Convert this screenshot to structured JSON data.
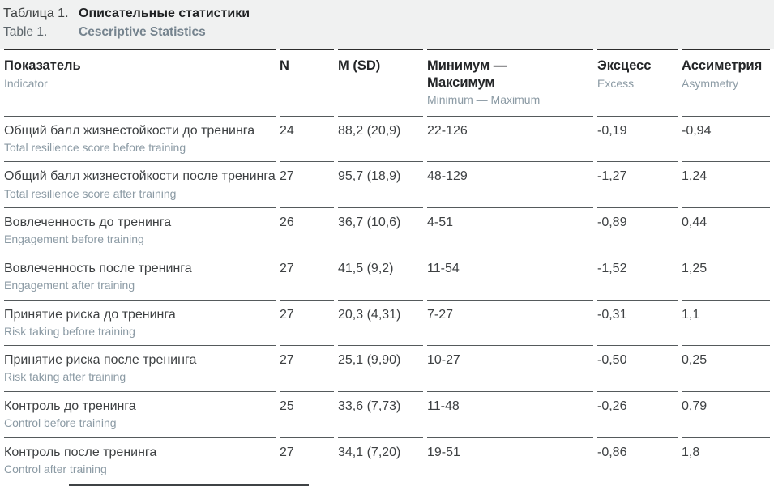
{
  "caption": {
    "ru_prefix": "Таблица 1.",
    "ru_title": "Описательные статистики",
    "en_prefix": "Table 1.",
    "en_title": "Cescriptive Statistics"
  },
  "table": {
    "columns": [
      {
        "ru": "Показатель",
        "en": "Indicator"
      },
      {
        "ru": "N",
        "en": ""
      },
      {
        "ru": "M (SD)",
        "en": ""
      },
      {
        "ru": "Минимум — Максимум",
        "en": "Minimum — Maximum"
      },
      {
        "ru": "Эксцесс",
        "en": "Excess"
      },
      {
        "ru": "Ассиметрия",
        "en": "Asymmetry"
      }
    ],
    "rows": [
      {
        "ru": "Общий балл жизнестойкости до тренинга",
        "en": "Total resilience score before training",
        "n": "24",
        "m_sd": "88,2 (20,9)",
        "min_max": "22-126",
        "excess": "-0,19",
        "asymmetry": "-0,94"
      },
      {
        "ru": "Общий балл жизнестойкости после тренинга",
        "en": "Total resilience score after training",
        "n": "27",
        "m_sd": "95,7 (18,9)",
        "min_max": "48-129",
        "excess": "-1,27",
        "asymmetry": "1,24"
      },
      {
        "ru": "Вовлеченность до тренинга",
        "en": "Engagement before training",
        "n": "26",
        "m_sd": "36,7 (10,6)",
        "min_max": "4-51",
        "excess": "-0,89",
        "asymmetry": "0,44"
      },
      {
        "ru": "Вовлеченность после тренинга",
        "en": "Engagement after training",
        "n": "27",
        "m_sd": "41,5 (9,2)",
        "min_max": "11-54",
        "excess": "-1,52",
        "asymmetry": "1,25"
      },
      {
        "ru": "Принятие риска до тренинга",
        "en": "Risk taking before training",
        "n": "27",
        "m_sd": "20,3 (4,31)",
        "min_max": "7-27",
        "excess": "-0,31",
        "asymmetry": "1,1"
      },
      {
        "ru": "Принятие риска после тренинга",
        "en": "Risk taking after training",
        "n": "27",
        "m_sd": "25,1 (9,90)",
        "min_max": "10-27",
        "excess": "-0,50",
        "asymmetry": "0,25"
      },
      {
        "ru": "Контроль до тренинга",
        "en": "Control before training",
        "n": "25",
        "m_sd": "33,6 (7,73)",
        "min_max": "11-48",
        "excess": "-0,26",
        "asymmetry": "0,79"
      },
      {
        "ru": "Контроль после тренинга",
        "en": "Control after training",
        "n": "27",
        "m_sd": "34,1 (7,20)",
        "min_max": "19-51",
        "excess": "-0,86",
        "asymmetry": "1,8"
      }
    ]
  },
  "colors": {
    "caption_band_bg": "#f0f1f1",
    "heavy_rule": "#2c2c2c",
    "row_rule": "#555a5c",
    "primary_text": "#3e4143",
    "secondary_text": "#8b9aa4",
    "subtitle_text": "#75838e"
  }
}
